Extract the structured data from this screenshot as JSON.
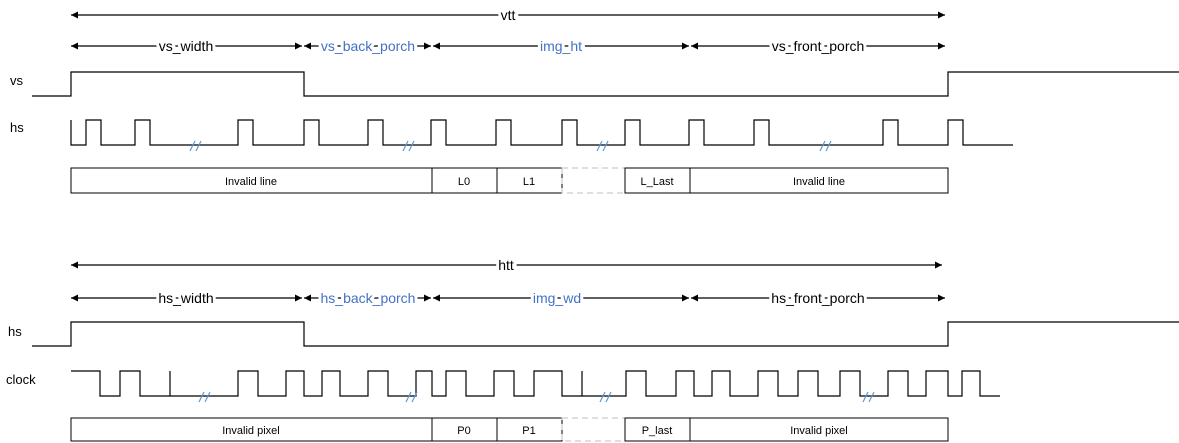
{
  "colors": {
    "line": "#000000",
    "accent": "#4472C4",
    "break_marks": "#5B9BD5",
    "dashed": "#bfbfbf"
  },
  "vertical": {
    "total_label": "vtt",
    "segments": [
      {
        "label": "vs_width",
        "accent": false
      },
      {
        "label": "vs_back_porch",
        "accent": true
      },
      {
        "label": "img_ht",
        "accent": true
      },
      {
        "label": "vs_front_porch",
        "accent": false
      }
    ],
    "signal_sync": "vs",
    "signal_pulse": "hs",
    "boxes": [
      "Invalid line",
      "L0",
      "L1",
      "",
      "L_Last",
      "Invalid line"
    ]
  },
  "horizontal": {
    "total_label": "htt",
    "segments": [
      {
        "label": "hs_width",
        "accent": false
      },
      {
        "label": "hs_back_porch",
        "accent": true
      },
      {
        "label": "img_wd",
        "accent": true
      },
      {
        "label": "hs_front_porch",
        "accent": false
      }
    ],
    "signal_sync": "hs",
    "signal_pulse": "clock",
    "boxes": [
      "Invalid pixel",
      "P0",
      "P1",
      "",
      "P_last",
      "Invalid pixel"
    ]
  }
}
